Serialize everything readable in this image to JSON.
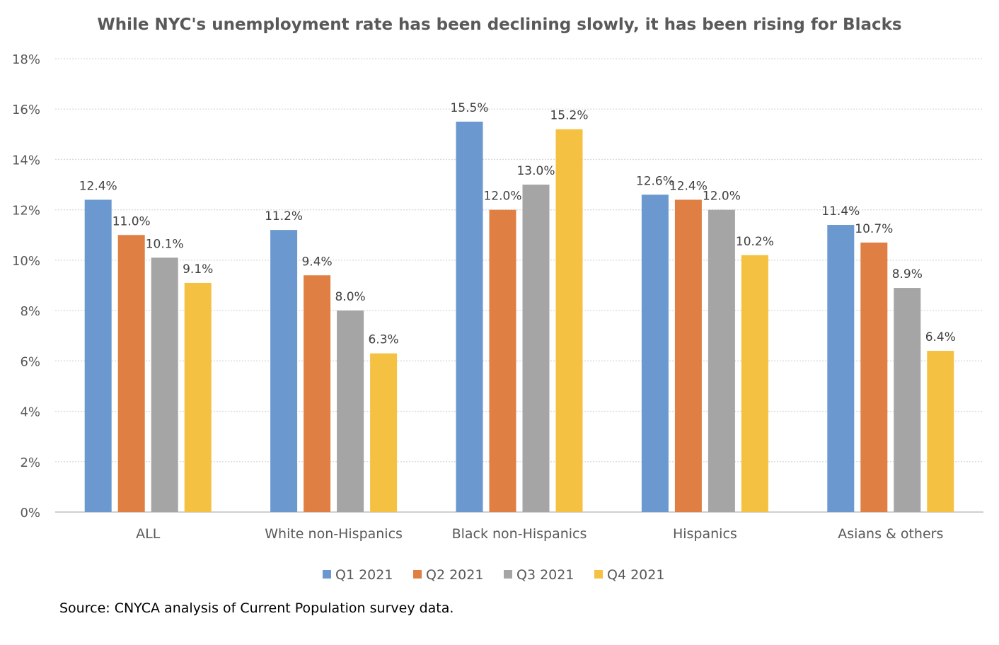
{
  "chart_data": {
    "type": "bar",
    "title": "While NYC's unemployment rate has been declining slowly, it has been rising for Blacks",
    "categories": [
      "ALL",
      "White non-Hispanics",
      "Black non-Hispanics",
      "Hispanics",
      "Asians & others"
    ],
    "series": [
      {
        "name": "Q1 2021",
        "color": "#6a98cf",
        "values": [
          12.4,
          11.2,
          15.5,
          12.6,
          11.4
        ],
        "labels": [
          "12.4%",
          "11.2%",
          "15.5%",
          "12.6%",
          "11.4%"
        ]
      },
      {
        "name": "Q2 2021",
        "color": "#e07f43",
        "values": [
          11.0,
          9.4,
          12.0,
          12.4,
          10.7
        ],
        "labels": [
          "11.0%",
          "9.4%",
          "12.0%",
          "12.4%",
          "10.7%"
        ]
      },
      {
        "name": "Q3 2021",
        "color": "#a5a5a5",
        "values": [
          10.1,
          8.0,
          13.0,
          12.0,
          8.9
        ],
        "labels": [
          "10.1%",
          "8.0%",
          "13.0%",
          "12.0%",
          "8.9%"
        ]
      },
      {
        "name": "Q4 2021",
        "color": "#f4c142",
        "values": [
          9.1,
          6.3,
          15.2,
          10.2,
          6.4
        ],
        "labels": [
          "9.1%",
          "6.3%",
          "15.2%",
          "10.2%",
          "6.4%"
        ]
      }
    ],
    "ylim": [
      0,
      18
    ],
    "yticks": [
      0,
      2,
      4,
      6,
      8,
      10,
      12,
      14,
      16,
      18
    ],
    "ytick_labels": [
      "0%",
      "2%",
      "4%",
      "6%",
      "8%",
      "10%",
      "12%",
      "14%",
      "16%",
      "18%"
    ],
    "xlabel": "",
    "ylabel": "",
    "grid": true,
    "legend": "bottom"
  },
  "source_note": "Source: CNYCA analysis of Current Population survey data."
}
